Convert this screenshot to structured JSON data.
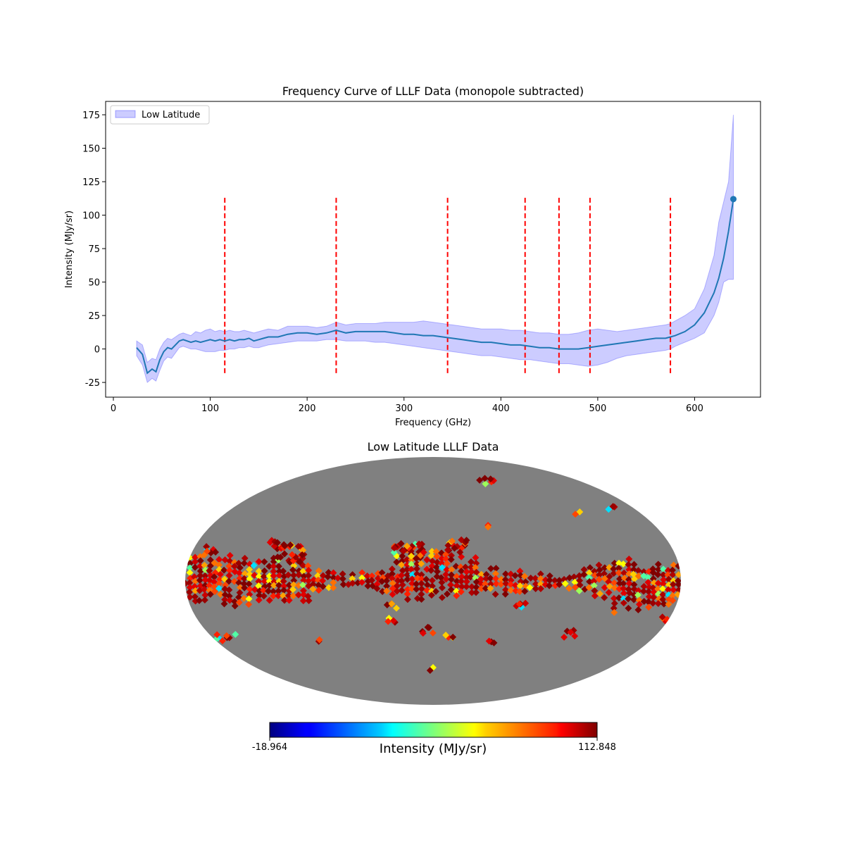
{
  "chart_data": [
    {
      "type": "line",
      "title": "Frequency Curve of LLLF Data (monopole subtracted)",
      "xlabel": "Frequency (GHz)",
      "ylabel": "Intensity (MJy/sr)",
      "xlim": [
        -8,
        668
      ],
      "ylim": [
        -36,
        185
      ],
      "xticks": [
        0,
        100,
        200,
        300,
        400,
        500,
        600
      ],
      "yticks": [
        -25,
        0,
        25,
        50,
        75,
        100,
        125,
        150,
        175
      ],
      "legend": {
        "label": "Low Latitude",
        "placement": "upper-left"
      },
      "series": [
        {
          "name": "mean",
          "color": "#1f77b4",
          "x": [
            24,
            30,
            35,
            40,
            44,
            48,
            52,
            56,
            60,
            64,
            68,
            72,
            76,
            80,
            85,
            90,
            95,
            100,
            105,
            110,
            115,
            120,
            125,
            130,
            135,
            140,
            145,
            150,
            155,
            160,
            170,
            180,
            190,
            200,
            210,
            220,
            230,
            240,
            250,
            260,
            270,
            280,
            290,
            300,
            310,
            320,
            330,
            340,
            350,
            360,
            370,
            380,
            390,
            400,
            410,
            420,
            430,
            440,
            450,
            460,
            470,
            480,
            490,
            500,
            510,
            520,
            530,
            540,
            550,
            560,
            570,
            575,
            580,
            590,
            600,
            610,
            620,
            625,
            630,
            635,
            640
          ],
          "y": [
            1,
            -4,
            -18,
            -15,
            -17,
            -8,
            -2,
            1,
            0,
            3,
            6,
            7,
            6,
            5,
            6,
            5,
            6,
            7,
            6,
            7,
            6,
            7,
            6,
            7,
            7,
            8,
            6,
            7,
            8,
            9,
            9,
            11,
            12,
            12,
            11,
            12,
            14,
            12,
            13,
            13,
            13,
            13,
            12,
            11,
            11,
            10,
            10,
            9,
            8,
            7,
            6,
            5,
            5,
            4,
            3,
            3,
            2,
            1,
            1,
            0,
            0,
            0,
            1,
            2,
            3,
            4,
            5,
            6,
            7,
            8,
            8,
            9,
            10,
            13,
            18,
            27,
            42,
            53,
            68,
            88,
            112
          ]
        },
        {
          "name": "Low Latitude",
          "type": "band",
          "color": "#0000ff",
          "x": [
            24,
            30,
            35,
            40,
            44,
            48,
            52,
            56,
            60,
            64,
            68,
            72,
            76,
            80,
            85,
            90,
            95,
            100,
            105,
            110,
            115,
            120,
            125,
            130,
            135,
            140,
            145,
            150,
            155,
            160,
            170,
            180,
            190,
            200,
            210,
            220,
            230,
            240,
            250,
            260,
            270,
            280,
            290,
            300,
            310,
            320,
            330,
            340,
            350,
            360,
            370,
            380,
            390,
            400,
            410,
            420,
            430,
            440,
            450,
            460,
            470,
            480,
            490,
            500,
            510,
            520,
            530,
            540,
            550,
            560,
            570,
            575,
            580,
            590,
            600,
            610,
            620,
            625,
            630,
            635,
            640
          ],
          "upper": [
            6,
            3,
            -10,
            -7,
            -8,
            0,
            5,
            8,
            7,
            9,
            11,
            12,
            11,
            10,
            13,
            12,
            14,
            15,
            13,
            14,
            13,
            14,
            13,
            13,
            14,
            13,
            12,
            13,
            14,
            15,
            14,
            17,
            17,
            17,
            16,
            17,
            20,
            18,
            19,
            19,
            19,
            20,
            20,
            20,
            20,
            21,
            20,
            19,
            18,
            17,
            16,
            15,
            15,
            15,
            14,
            14,
            13,
            12,
            12,
            11,
            11,
            12,
            14,
            15,
            14,
            13,
            14,
            15,
            16,
            17,
            18,
            19,
            21,
            25,
            30,
            45,
            70,
            95,
            110,
            125,
            175
          ],
          "lower": [
            -5,
            -12,
            -25,
            -22,
            -24,
            -16,
            -9,
            -6,
            -7,
            -3,
            1,
            2,
            1,
            0,
            0,
            -1,
            -2,
            -2,
            -2,
            -1,
            -1,
            0,
            0,
            1,
            1,
            2,
            1,
            1,
            2,
            3,
            4,
            5,
            6,
            6,
            6,
            7,
            7,
            6,
            6,
            6,
            5,
            5,
            4,
            3,
            2,
            1,
            0,
            -1,
            -2,
            -3,
            -4,
            -5,
            -5,
            -6,
            -7,
            -8,
            -8,
            -9,
            -10,
            -11,
            -11,
            -12,
            -13,
            -12,
            -10,
            -7,
            -5,
            -4,
            -3,
            -2,
            -1,
            0,
            2,
            5,
            8,
            12,
            25,
            35,
            50,
            52,
            52
          ]
        }
      ],
      "marker": {
        "x": 640,
        "y": 112
      },
      "vlines": {
        "x": [
          115,
          230,
          345,
          425,
          460,
          492,
          575
        ],
        "ymin": -20,
        "ymax": 113,
        "color": "#ff0000",
        "style": "dashed"
      }
    },
    {
      "type": "heatmap",
      "title": "Low Latitude LLLF Data",
      "projection": "mollweide",
      "masked_color": "#808080",
      "colormap": "jet",
      "colorbar": {
        "min": -18.964,
        "max": 112.848,
        "min_label": "-18.964",
        "max_label": "112.848",
        "label": "Intensity (MJy/sr)"
      }
    }
  ]
}
